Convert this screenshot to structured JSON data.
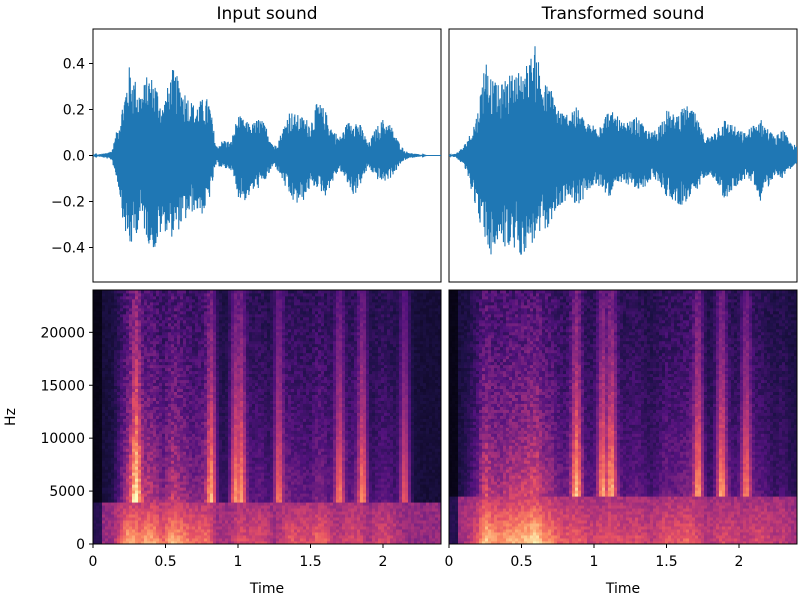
{
  "chart_data": [
    {
      "type": "line",
      "panel": "waveform",
      "title": "Input sound",
      "xlabel": "",
      "ylabel": "",
      "xlim": [
        0,
        2.4
      ],
      "ylim": [
        -0.55,
        0.55
      ],
      "yticks": [
        0.4,
        0.2,
        0.0,
        -0.2,
        -0.4
      ],
      "ytick_labels": [
        "0.4",
        "0.2",
        "0.0",
        "−0.2",
        "−0.4"
      ],
      "envelope": {
        "x": [
          0,
          0.08,
          0.13,
          0.18,
          0.21,
          0.25,
          0.28,
          0.33,
          0.38,
          0.43,
          0.48,
          0.55,
          0.62,
          0.7,
          0.76,
          0.8,
          0.85,
          0.9,
          0.95,
          1.0,
          1.05,
          1.1,
          1.15,
          1.2,
          1.25,
          1.3,
          1.35,
          1.4,
          1.45,
          1.5,
          1.55,
          1.6,
          1.65,
          1.7,
          1.75,
          1.8,
          1.85,
          1.9,
          1.95,
          2.0,
          2.05,
          2.1,
          2.13,
          2.15,
          2.2,
          2.3,
          2.4
        ],
        "upper": [
          0.0,
          0.01,
          0.02,
          0.15,
          0.25,
          0.39,
          0.35,
          0.28,
          0.36,
          0.33,
          0.22,
          0.38,
          0.3,
          0.22,
          0.25,
          0.25,
          0.04,
          0.07,
          0.06,
          0.18,
          0.15,
          0.14,
          0.17,
          0.12,
          0.04,
          0.1,
          0.2,
          0.18,
          0.17,
          0.15,
          0.24,
          0.2,
          0.12,
          0.08,
          0.14,
          0.17,
          0.13,
          0.05,
          0.12,
          0.16,
          0.14,
          0.07,
          0.04,
          0.02,
          0.01,
          0.0,
          0.0
        ],
        "lower": [
          0.0,
          -0.01,
          -0.02,
          -0.15,
          -0.3,
          -0.42,
          -0.38,
          -0.28,
          -0.38,
          -0.42,
          -0.32,
          -0.36,
          -0.3,
          -0.24,
          -0.26,
          -0.2,
          -0.04,
          -0.06,
          -0.06,
          -0.18,
          -0.2,
          -0.16,
          -0.14,
          -0.1,
          -0.04,
          -0.1,
          -0.18,
          -0.22,
          -0.2,
          -0.14,
          -0.14,
          -0.18,
          -0.12,
          -0.06,
          -0.12,
          -0.18,
          -0.12,
          -0.05,
          -0.1,
          -0.12,
          -0.1,
          -0.06,
          -0.03,
          -0.02,
          -0.01,
          0.0,
          0.0
        ]
      }
    },
    {
      "type": "line",
      "panel": "waveform",
      "title": "Transformed sound",
      "xlabel": "",
      "ylabel": "",
      "xlim": [
        0,
        2.4
      ],
      "ylim": [
        -0.55,
        0.55
      ],
      "envelope": {
        "x": [
          0,
          0.05,
          0.1,
          0.15,
          0.2,
          0.25,
          0.3,
          0.35,
          0.4,
          0.45,
          0.5,
          0.55,
          0.6,
          0.65,
          0.7,
          0.75,
          0.8,
          0.85,
          0.9,
          0.95,
          1.0,
          1.05,
          1.1,
          1.15,
          1.2,
          1.25,
          1.3,
          1.35,
          1.4,
          1.45,
          1.5,
          1.55,
          1.6,
          1.65,
          1.7,
          1.75,
          1.8,
          1.85,
          1.9,
          1.95,
          2.0,
          2.05,
          2.1,
          2.15,
          2.2,
          2.25,
          2.3,
          2.35,
          2.4
        ],
        "upper": [
          0.0,
          0.01,
          0.04,
          0.1,
          0.2,
          0.44,
          0.33,
          0.3,
          0.35,
          0.36,
          0.38,
          0.41,
          0.49,
          0.32,
          0.3,
          0.22,
          0.18,
          0.22,
          0.2,
          0.14,
          0.14,
          0.16,
          0.2,
          0.18,
          0.14,
          0.15,
          0.17,
          0.12,
          0.1,
          0.14,
          0.2,
          0.18,
          0.2,
          0.22,
          0.18,
          0.1,
          0.08,
          0.13,
          0.16,
          0.14,
          0.11,
          0.1,
          0.14,
          0.16,
          0.12,
          0.08,
          0.12,
          0.06,
          0.04
        ],
        "lower": [
          0.0,
          -0.01,
          -0.04,
          -0.14,
          -0.26,
          -0.38,
          -0.46,
          -0.36,
          -0.42,
          -0.42,
          -0.44,
          -0.4,
          -0.38,
          -0.34,
          -0.3,
          -0.24,
          -0.2,
          -0.2,
          -0.22,
          -0.16,
          -0.14,
          -0.14,
          -0.18,
          -0.16,
          -0.12,
          -0.13,
          -0.16,
          -0.14,
          -0.1,
          -0.12,
          -0.18,
          -0.2,
          -0.22,
          -0.2,
          -0.18,
          -0.1,
          -0.08,
          -0.12,
          -0.2,
          -0.16,
          -0.12,
          -0.1,
          -0.12,
          -0.2,
          -0.14,
          -0.08,
          -0.1,
          -0.06,
          -0.04
        ]
      }
    },
    {
      "type": "heatmap",
      "panel": "spectrogram",
      "title": "",
      "xlabel": "Time",
      "ylabel": "Hz",
      "xlim": [
        0,
        2.4
      ],
      "ylim": [
        0,
        24000
      ],
      "xticks": [
        0,
        0.5,
        1,
        1.5,
        2
      ],
      "xtick_labels": [
        "0",
        "0.5",
        "1",
        "1.5",
        "2"
      ],
      "yticks": [
        0,
        5000,
        10000,
        15000,
        20000
      ],
      "ytick_labels": [
        "0",
        "5000",
        "10000",
        "15000",
        "20000"
      ],
      "bright_bursts_time": [
        0.3,
        0.82,
        0.98,
        1.02,
        1.28,
        1.7,
        1.86,
        2.15
      ],
      "low_band_hz": [
        0,
        4000
      ]
    },
    {
      "type": "heatmap",
      "panel": "spectrogram",
      "title": "",
      "xlabel": "Time",
      "ylabel": "",
      "xlim": [
        0,
        2.4
      ],
      "ylim": [
        0,
        24000
      ],
      "xticks": [
        0,
        0.5,
        1,
        1.5,
        2
      ],
      "xtick_labels": [
        "0",
        "0.5",
        "1",
        "1.5",
        "2"
      ],
      "bright_bursts_time": [
        0.88,
        1.06,
        1.12,
        1.72,
        1.88,
        2.05
      ],
      "low_band_hz": [
        0,
        4500
      ]
    }
  ],
  "colors": {
    "waveform": "#1f77b4",
    "spectrogram_background": "#0d0829",
    "magma_stops": [
      "#000004",
      "#1d1147",
      "#51127c",
      "#822681",
      "#b63679",
      "#e65164",
      "#fb8861",
      "#fec287",
      "#fcfdbf"
    ]
  }
}
